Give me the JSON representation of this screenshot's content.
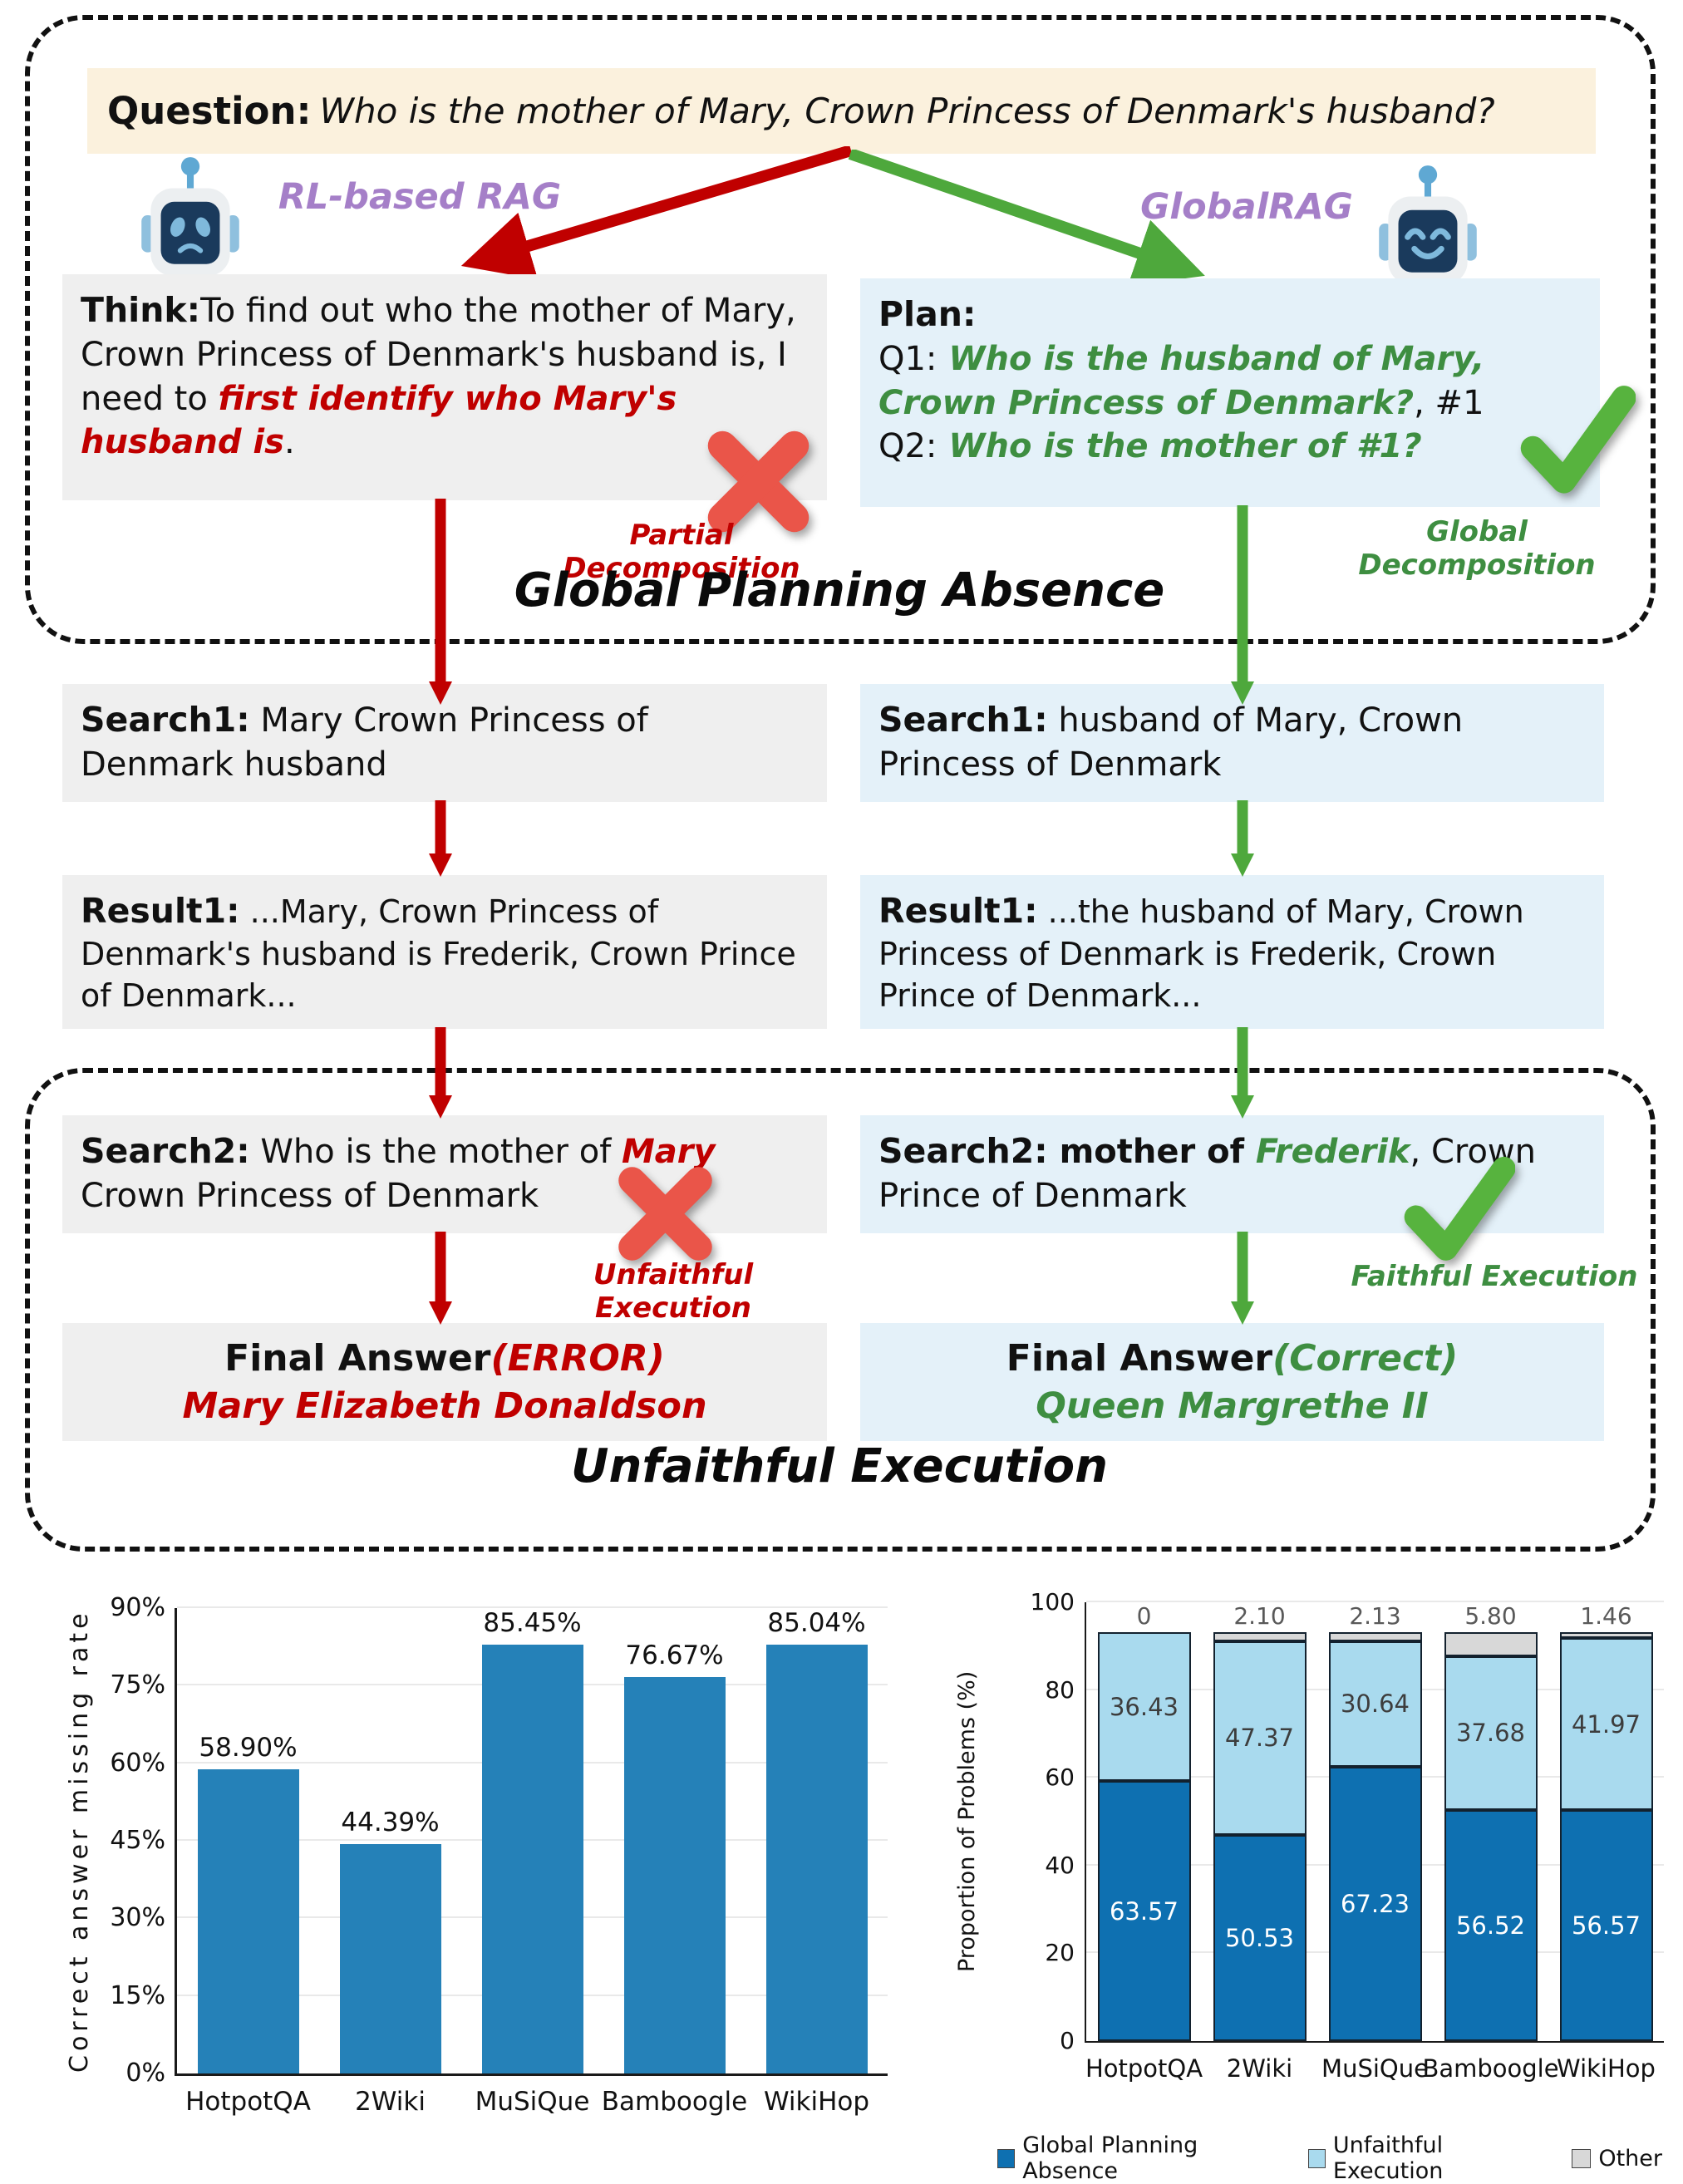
{
  "figure": {
    "question": {
      "label": "Question:",
      "text": "Who is the mother of Mary, Crown Princess of Denmark's husband?"
    },
    "branches": {
      "left_name": "RL-based RAG",
      "right_name": "GlobalRAG"
    },
    "section1_title": "Global Planning Absence",
    "section2_title": "Unfaithful Execution",
    "left": {
      "think": {
        "label": "Think:",
        "pre": "To find out who the mother of Mary, Crown Princess of Denmark's husband is, I need to ",
        "highlight": "first identify who Mary's husband is",
        "post": "."
      },
      "decomposition": "Partial Decomposition",
      "search1": {
        "label": "Search1:",
        "text": " Mary Crown Princess of Denmark husband"
      },
      "result1": {
        "label": "Result1:",
        "text": " ...Mary, Crown Princess of Denmark's husband is Frederik, Crown Prince of Denmark..."
      },
      "search2": {
        "label": "Search2:",
        "pre": " Who is the mother of ",
        "highlight": "Mary",
        "post": " Crown Princess of Denmark"
      },
      "execution": "Unfaithful Execution",
      "final": {
        "label": "Final Answer",
        "status": "(ERROR)",
        "answer": "Mary Elizabeth Donaldson"
      }
    },
    "right": {
      "plan": {
        "label": "Plan:",
        "q1_label": "Q1:",
        "q1_text": " Who is the husband of Mary, Crown Princess of Denmark?",
        "q1_suffix": ", #1",
        "q2_label": "Q2:",
        "q2_text": " Who is the mother of #1?"
      },
      "decomposition": "Global Decomposition",
      "search1": {
        "label": "Search1:",
        "text": " husband of Mary, Crown Princess of Denmark"
      },
      "result1": {
        "label": "Result1:",
        "text": " ...the husband of Mary, Crown Princess of Denmark is Frederik, Crown Prince of Denmark..."
      },
      "search2": {
        "label": "Search2:",
        "bold": " mother of ",
        "highlight": "Frederik",
        "post": ", Crown Prince of Denmark"
      },
      "execution": "Faithful Execution",
      "final": {
        "label": "Final Answer",
        "status": "(Correct)",
        "answer": "Queen Margrethe II"
      }
    }
  },
  "colors": {
    "question_bg": "#fbf1dd",
    "gray_box": "#efefef",
    "blue_box": "#e4f1f9",
    "red": "#c00000",
    "green": "#3e8e41",
    "arrow_red": "#c00000",
    "arrow_green": "#4ea83c",
    "purple": "#a57fc8",
    "cross_red": "#ea5549",
    "check_green": "#57b33e"
  },
  "chart_data": [
    {
      "type": "bar",
      "title": "",
      "xlabel": "",
      "ylabel": "Correct answer missing rate",
      "categories": [
        "HotpotQA",
        "2Wiki",
        "MuSiQue",
        "Bamboogle",
        "WikiHop"
      ],
      "values": [
        58.9,
        44.39,
        85.45,
        76.67,
        85.04
      ],
      "value_labels": [
        "58.90%",
        "44.39%",
        "85.45%",
        "76.67%",
        "85.04%"
      ],
      "ylim": [
        0,
        90
      ],
      "yticks": [
        {
          "v": 0,
          "label": "0%"
        },
        {
          "v": 15,
          "label": "15%"
        },
        {
          "v": 30,
          "label": "30%"
        },
        {
          "v": 45,
          "label": "45%"
        },
        {
          "v": 60,
          "label": "60%"
        },
        {
          "v": 75,
          "label": "75%"
        },
        {
          "v": 90,
          "label": "90%"
        }
      ],
      "bar_color": "#2581b8",
      "grid": true,
      "legend_position": "none"
    },
    {
      "type": "stacked-bar",
      "title": "",
      "xlabel": "",
      "ylabel": "Proportion of Problems (%)",
      "categories": [
        "HotpotQA",
        "2Wiki",
        "MuSiQue",
        "Bamboogle",
        "WikiHop"
      ],
      "series": [
        {
          "name": "Global Planning Absence",
          "color": "#0e70b1",
          "text_color": "#ffffff",
          "show_inside": true,
          "values": [
            63.57,
            50.53,
            67.23,
            56.52,
            56.57
          ]
        },
        {
          "name": "Unfaithful Execution",
          "color": "#a9daee",
          "text_color": "#3d3d3d",
          "show_inside": true,
          "values": [
            36.43,
            47.37,
            30.64,
            37.68,
            41.97
          ]
        },
        {
          "name": "Other",
          "color": "#d8d8d8",
          "text_color": "#595959",
          "show_inside": false,
          "values": [
            0,
            2.1,
            2.13,
            5.8,
            1.46
          ]
        }
      ],
      "top_labels": [
        "0",
        "2.10",
        "2.13",
        "5.80",
        "1.46"
      ],
      "ylim": [
        0,
        100
      ],
      "yticks": [
        {
          "v": 0,
          "label": "0"
        },
        {
          "v": 20,
          "label": "20"
        },
        {
          "v": 40,
          "label": "40"
        },
        {
          "v": 60,
          "label": "60"
        },
        {
          "v": 80,
          "label": "80"
        },
        {
          "v": 100,
          "label": "100"
        }
      ],
      "grid": true,
      "legend_position": "bottom"
    }
  ]
}
